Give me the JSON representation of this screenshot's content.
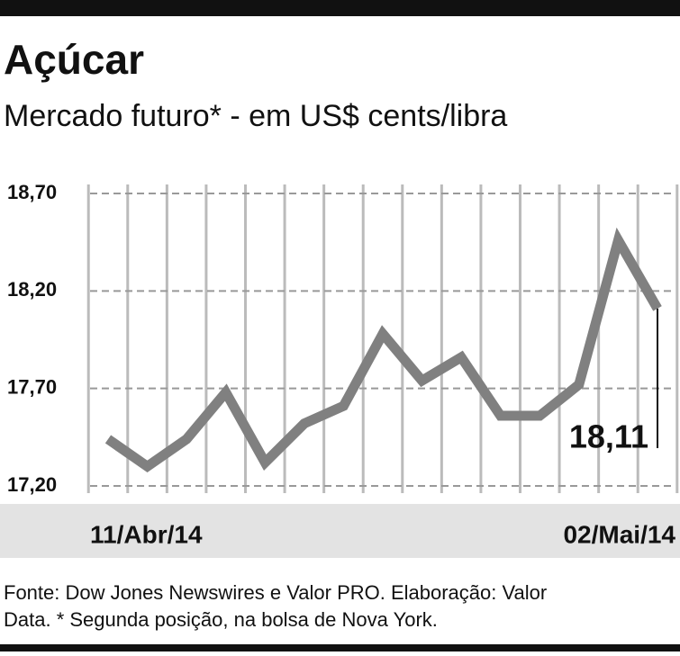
{
  "chart_data": {
    "type": "line",
    "title": "Açúcar",
    "subtitle": "Mercado futuro* - em US$ cents/libra",
    "categories": [
      "11/Abr/14",
      null,
      null,
      null,
      null,
      null,
      null,
      null,
      null,
      null,
      null,
      null,
      null,
      null,
      "02/Mai/14"
    ],
    "series": [
      {
        "name": "Açúcar",
        "color": "#808080",
        "values": [
          17.44,
          17.3,
          17.44,
          17.68,
          17.32,
          17.52,
          17.61,
          17.98,
          17.74,
          17.86,
          17.56,
          17.56,
          17.72,
          18.46,
          18.11
        ],
        "value_labels": [
          null,
          null,
          null,
          null,
          null,
          null,
          null,
          null,
          null,
          null,
          null,
          null,
          null,
          null,
          "18,11"
        ]
      }
    ],
    "ylim": [
      17.2,
      18.7
    ],
    "yticks": [
      {
        "value": 17.2,
        "label": "17,20"
      },
      {
        "value": 17.7,
        "label": "17,70"
      },
      {
        "value": 18.2,
        "label": "18,20"
      },
      {
        "value": 18.7,
        "label": "18,70"
      }
    ],
    "grid": true,
    "source": "Fonte: Dow Jones Newswires e Valor PRO. Elaboração: Valor",
    "source_line2": "Data. * Segunda posição, na bolsa de Nova York."
  }
}
